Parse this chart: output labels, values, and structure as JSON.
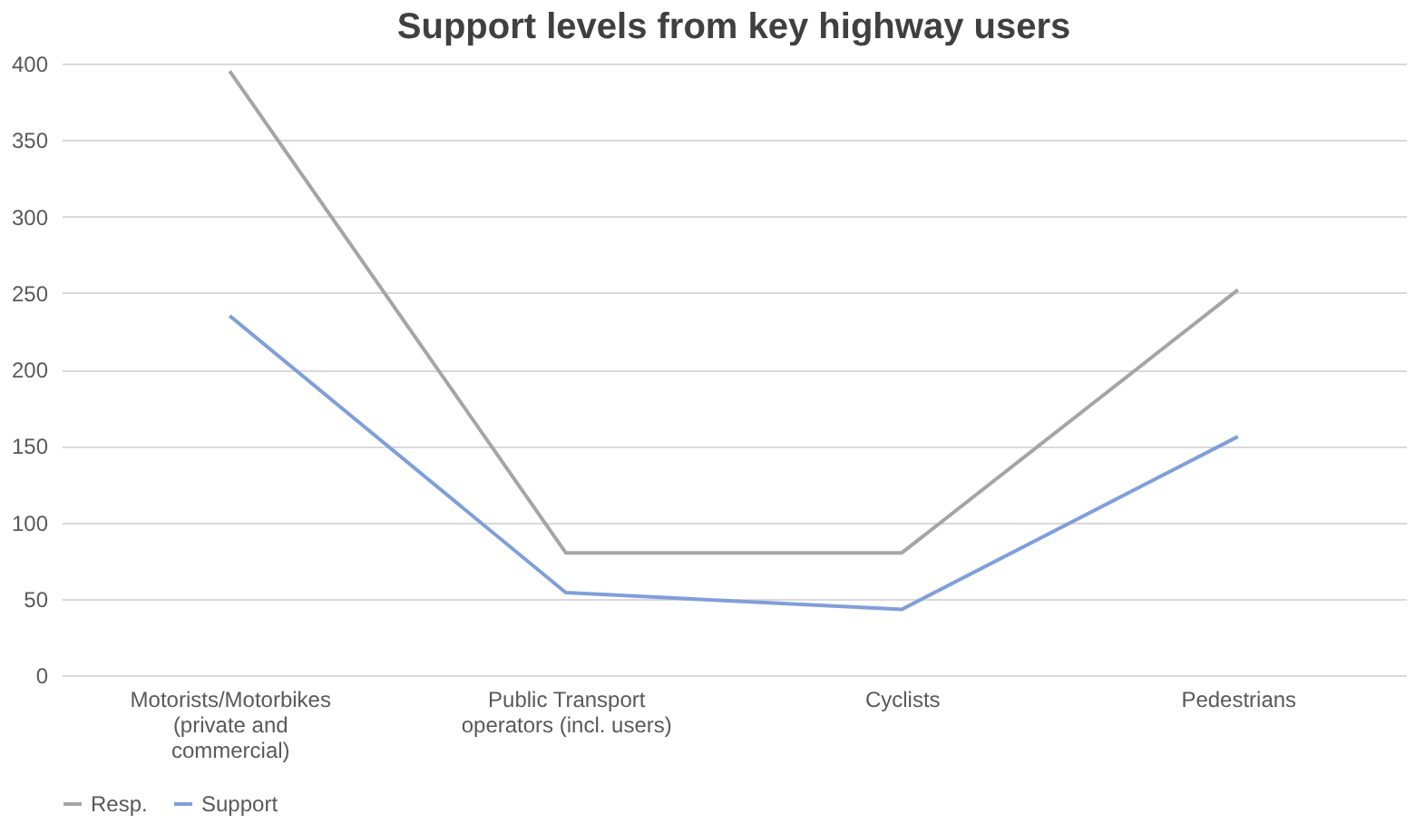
{
  "chart_data": {
    "type": "line",
    "title": "Support levels from key highway users",
    "categories": [
      "Motorists/Motorbikes\n(private and\ncommercial)",
      "Public Transport\noperators (incl. users)",
      "Cyclists",
      "Pedestrians"
    ],
    "series": [
      {
        "name": "Resp.",
        "color": "#a5a5a5",
        "values": [
          395,
          80,
          80,
          252
        ]
      },
      {
        "name": "Support",
        "color": "#7f9fd9",
        "values": [
          235,
          54,
          43,
          156
        ]
      }
    ],
    "ylim": [
      0,
      400
    ],
    "yticks": [
      0,
      50,
      100,
      150,
      200,
      250,
      300,
      350,
      400
    ],
    "grid": "y",
    "legend": "bottom",
    "marker": "none",
    "line_style": "solid"
  }
}
